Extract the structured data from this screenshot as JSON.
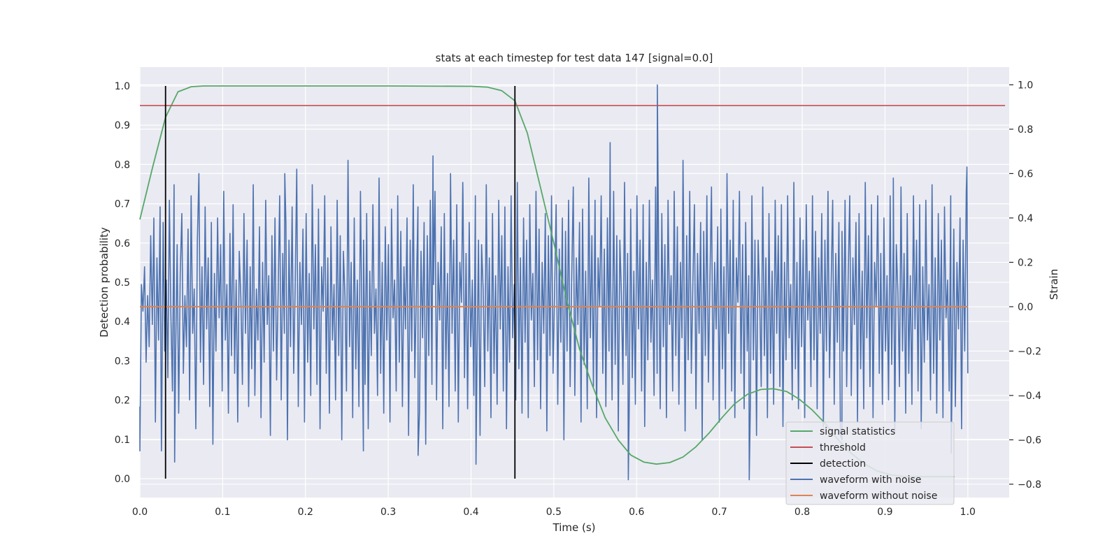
{
  "chart_data": {
    "type": "line",
    "title": "stats at each timestep for test data 147 [signal=0.0]",
    "xlabel": "Time (s)",
    "ylabel": "Detection probability",
    "ylabel_right": "Strain",
    "xlim": [
      0.0,
      1.05
    ],
    "ylim": [
      -0.048,
      1.048
    ],
    "ylim_right": [
      -0.86,
      1.08
    ],
    "xticks": [
      0.0,
      0.1,
      0.2,
      0.3,
      0.4,
      0.5,
      0.6,
      0.7,
      0.8,
      0.9,
      1.0
    ],
    "xtick_labels": [
      "0.0",
      "0.1",
      "0.2",
      "0.3",
      "0.4",
      "0.5",
      "0.6",
      "0.7",
      "0.8",
      "0.9",
      "1.0"
    ],
    "yticks": [
      0.0,
      0.1,
      0.2,
      0.3,
      0.4,
      0.5,
      0.6,
      0.7,
      0.8,
      0.9,
      1.0
    ],
    "ytick_labels": [
      "0.0",
      "0.1",
      "0.2",
      "0.3",
      "0.4",
      "0.5",
      "0.6",
      "0.7",
      "0.8",
      "0.9",
      "1.0"
    ],
    "yticks_right": [
      -0.8,
      -0.6,
      -0.4,
      -0.2,
      0.0,
      0.2,
      0.4,
      0.6,
      0.8,
      1.0
    ],
    "ytick_labels_right": [
      "−0.8",
      "−0.6",
      "−0.4",
      "−0.2",
      "0.0",
      "0.2",
      "0.4",
      "0.6",
      "0.8",
      "1.0"
    ],
    "grid": true,
    "legend_position": "bottom-right",
    "series": [
      {
        "name": "signal statistics",
        "axis": "left",
        "color": "#55a868",
        "x": [
          0.0,
          0.015,
          0.031,
          0.046,
          0.062,
          0.077,
          0.1,
          0.2,
          0.3,
          0.4,
          0.42,
          0.437,
          0.453,
          0.468,
          0.484,
          0.5,
          0.515,
          0.531,
          0.546,
          0.562,
          0.578,
          0.593,
          0.609,
          0.624,
          0.64,
          0.656,
          0.671,
          0.687,
          0.703,
          0.718,
          0.734,
          0.75,
          0.765,
          0.781,
          0.796,
          0.812,
          0.828,
          0.843,
          0.859,
          0.875,
          0.89,
          0.906,
          0.921,
          0.937,
          0.953,
          0.968,
          0.984
        ],
        "y": [
          0.66,
          0.79,
          0.92,
          0.985,
          0.998,
          1.0,
          1.0,
          1.0,
          1.0,
          0.999,
          0.997,
          0.988,
          0.962,
          0.88,
          0.74,
          0.6,
          0.46,
          0.33,
          0.24,
          0.155,
          0.098,
          0.06,
          0.042,
          0.037,
          0.041,
          0.055,
          0.08,
          0.115,
          0.155,
          0.19,
          0.215,
          0.227,
          0.229,
          0.222,
          0.203,
          0.175,
          0.14,
          0.1,
          0.065,
          0.038,
          0.02,
          0.01,
          0.006,
          0.005,
          0.005,
          0.005,
          0.005
        ]
      },
      {
        "name": "threshold",
        "axis": "left",
        "color": "#c44e52",
        "x": [
          0.0,
          1.045
        ],
        "y": [
          0.95,
          0.95
        ]
      },
      {
        "name": "detection",
        "axis": "left",
        "color": "#000000",
        "x": [
          0.031,
          0.453
        ],
        "y_range": [
          0.0,
          1.0
        ]
      },
      {
        "name": "waveform with noise",
        "axis": "right",
        "color": "#4c72b0",
        "x_range": [
          0.0,
          1.0
        ],
        "values": [
          -0.45,
          0.1,
          -0.02,
          0.18,
          -0.25,
          0.05,
          -0.18,
          0.32,
          -0.08,
          0.4,
          -0.52,
          0.22,
          -0.15,
          0.45,
          -0.58,
          0.38,
          -0.2,
          0.12,
          -0.32,
          0.48,
          -0.05,
          -0.38,
          0.55,
          -0.22,
          0.28,
          -0.48,
          0.15,
          0.42,
          -0.3,
          0.05,
          -0.18,
          0.35,
          -0.42,
          0.5,
          -0.12,
          0.08,
          -0.55,
          0.3,
          0.6,
          -0.25,
          0.18,
          -0.35,
          0.45,
          -0.1,
          0.22,
          -0.45,
          0.38,
          -0.62,
          0.15,
          -0.2,
          0.4,
          -0.05,
          0.28,
          -0.38,
          0.52,
          -0.15,
          0.1,
          -0.48,
          0.33,
          -0.22,
          0.46,
          -0.3,
          0.12,
          -0.52,
          0.25,
          0.04,
          -0.35,
          0.42,
          -0.12,
          0.3,
          -0.45,
          0.18,
          -0.28,
          0.55,
          -0.4,
          0.08,
          -0.15,
          0.36,
          -0.5,
          0.2,
          -0.25,
          0.48,
          -0.08,
          0.14,
          -0.58,
          0.32,
          -0.2,
          0.4,
          -0.33,
          0.06,
          0.5,
          -0.42,
          0.24,
          -0.12,
          0.38,
          -0.6,
          0.3,
          -0.18,
          0.45,
          -0.3,
          0.1,
          0.62,
          -0.45,
          0.2,
          -0.08,
          0.35,
          -0.52,
          0.42,
          -0.25,
          0.15,
          -0.4,
          0.55,
          -0.1,
          0.28,
          -0.35,
          0.44,
          -0.55,
          0.18,
          -0.02,
          0.5,
          -0.3,
          0.22,
          -0.48,
          0.36,
          -0.15,
          0.1,
          -0.42,
          0.48,
          -0.22,
          0.32,
          -0.6,
          0.25,
          0.05,
          -0.38,
          0.66,
          -0.18,
          0.2,
          -0.5,
          0.4,
          -0.28,
          0.12,
          -0.45,
          0.52,
          -0.08,
          0.3,
          -0.35,
          0.42,
          -0.55,
          0.16,
          -0.22,
          0.46,
          -0.12,
          0.08,
          -0.4,
          0.58,
          -0.3,
          0.2,
          -0.48,
          0.36,
          -0.15,
          0.28,
          -0.52,
          0.44,
          -0.05,
          0.12,
          -0.38,
          0.5,
          -0.25,
          0.34,
          -0.45,
          0.18,
          -0.1,
          0.4,
          -0.58,
          0.3,
          -0.2,
          0.55,
          -0.32,
          0.06,
          0.45,
          -0.48,
          0.25,
          -0.14,
          0.38,
          -0.62,
          0.32,
          -0.22,
          0.48,
          -0.35,
          0.1,
          0.52,
          -0.42,
          0.2,
          -0.06,
          0.36,
          -0.55,
          0.42,
          -0.28,
          0.15,
          -0.45,
          0.6,
          -0.12,
          0.3,
          -0.38,
          0.46,
          -0.52,
          0.2,
          0.02,
          0.5,
          -0.32,
          0.24,
          -0.46,
          0.38,
          -0.18,
          0.12,
          -0.4,
          0.5,
          -0.25,
          0.3,
          -0.58,
          0.28,
          0.08,
          -0.36,
          0.55,
          -0.2,
          0.22,
          -0.5,
          0.42,
          -0.3,
          0.14,
          -0.44,
          0.48,
          -0.1,
          0.32,
          -0.38,
          0.45,
          -0.55,
          0.18,
          -0.25,
          0.5,
          -0.14,
          0.1,
          -0.42,
          0.56,
          -0.28,
          0.22,
          -0.48,
          0.4,
          -0.16,
          0.3,
          -0.5,
          0.46,
          -0.06,
          0.15,
          -0.36,
          0.52,
          -0.24,
          0.35,
          -0.46,
          0.2,
          -0.12,
          0.42,
          -0.56,
          0.32,
          -0.22,
          0.5,
          -0.3,
          0.08,
          0.46,
          -0.44,
          0.26,
          -0.16,
          0.4,
          -0.6,
          0.34,
          -0.2,
          0.48,
          -0.36,
          0.12,
          0.54,
          -0.4,
          0.22,
          -0.08,
          0.38,
          -0.52,
          0.44,
          -0.26,
          0.16,
          -0.46,
          0.58,
          -0.14,
          0.32,
          -0.36,
          0.48,
          -0.5,
          0.22,
          0.0,
          0.5,
          -0.3,
          0.26,
          -0.45,
          0.4,
          -0.2,
          0.14,
          -0.42,
          0.52,
          -0.26,
          0.32,
          -0.56,
          0.3,
          0.06,
          -0.35,
          0.56,
          -0.22,
          0.24,
          -0.48,
          0.44,
          -0.32,
          0.16,
          -0.44,
          0.5,
          -0.1,
          0.3,
          -0.38,
          0.46,
          -0.54,
          0.2,
          -0.24,
          0.48,
          -0.16,
          0.12,
          -0.4,
          0.54,
          -0.3,
          0.22,
          -0.46,
          0.42,
          -0.18,
          0.28,
          -0.5,
          0.48,
          -0.08,
          0.14,
          -0.38,
          0.52,
          -0.22,
          0.36,
          -0.44,
          0.2,
          -0.14,
          0.4,
          -0.56,
          0.32,
          -0.24,
          0.52,
          -0.3,
          0.1,
          0.46,
          -0.46,
          0.24,
          -0.12,
          0.38,
          -0.6,
          0.34,
          -0.22,
          0.5,
          -0.34,
          0.12,
          0.54,
          -0.42,
          0.2,
          -0.1,
          0.36,
          -0.52,
          0.44,
          -0.28,
          0.18,
          -0.46,
          0.6,
          -0.12,
          0.3,
          -0.38,
          0.48,
          -0.5,
          0.22,
          0.02,
          0.52,
          -0.3,
          0.28,
          -0.46,
          0.38,
          -0.2,
          0.14,
          -0.44,
          0.5,
          -0.24,
          0.3,
          -0.58,
          0.3,
          0.04,
          -0.36,
          0.54,
          -0.22,
          0.22,
          -0.5,
          0.42,
          -0.3,
          0.16,
          -0.44,
          0.48,
          -0.12,
          0.32,
          -0.36,
          0.46,
          -0.54,
          0.2,
          -0.24,
          0.5,
          -0.14,
          0.1,
          -0.42,
          0.56,
          -0.28,
          0.2,
          -0.46,
          0.4,
          -0.18,
          0.3,
          -0.5,
          0.46,
          -0.06,
          0.16,
          -0.36,
          0.5,
          -0.24,
          0.34,
          -0.46,
          0.22,
          -0.12,
          0.42,
          -0.54,
          0.3,
          -0.2,
          0.52,
          -0.32,
          0.1,
          0.48,
          -0.44,
          0.24,
          -0.16,
          0.38,
          -0.58,
          0.34,
          -0.2,
          0.48,
          -0.36,
          0.14,
          0.5,
          -0.4,
          0.22,
          -0.08,
          0.38,
          -0.52,
          0.42,
          -0.28,
          0.16,
          -0.46,
          0.56,
          -0.14,
          0.32,
          -0.36,
          0.46,
          -0.5,
          0.2,
          0.0,
          0.5,
          -0.3,
          0.24,
          -0.44,
          0.4,
          -0.2,
          0.14,
          -0.42,
          0.5,
          -0.26,
          0.3,
          -0.56,
          0.28,
          0.06,
          -0.36,
          0.54,
          -0.2,
          0.24,
          -0.48,
          0.42,
          -0.3,
          0.14,
          -0.44,
          0.5,
          -0.1,
          0.3,
          -0.38,
          0.46,
          -0.55,
          0.18,
          -0.25,
          0.48,
          -0.15,
          0.1,
          -0.42,
          0.55,
          -0.3,
          0.22,
          -0.48,
          0.42,
          -0.15,
          0.3,
          -0.5,
          0.45,
          -0.05,
          0.12,
          -0.38,
          0.5,
          -0.25,
          0.35,
          -0.45,
          0.2,
          -0.1,
          0.4,
          -0.55,
          0.3,
          -0.2,
          0.52,
          -0.3
        ],
        "spikes": [
          {
            "x": 0.0,
            "y": -0.65
          },
          {
            "x": 0.026,
            "y": -0.65
          },
          {
            "x": 0.042,
            "y": -0.7
          },
          {
            "x": 0.175,
            "y": 0.6
          },
          {
            "x": 0.27,
            "y": -0.65
          },
          {
            "x": 0.336,
            "y": -0.67
          },
          {
            "x": 0.354,
            "y": 0.68
          },
          {
            "x": 0.39,
            "y": 0.56
          },
          {
            "x": 0.406,
            "y": -0.71
          },
          {
            "x": 0.568,
            "y": 0.74
          },
          {
            "x": 0.59,
            "y": -0.78
          },
          {
            "x": 0.625,
            "y": 1.0
          },
          {
            "x": 0.656,
            "y": 0.66
          },
          {
            "x": 0.736,
            "y": -0.78
          },
          {
            "x": 0.848,
            "y": -0.6
          },
          {
            "x": 0.91,
            "y": 0.58
          },
          {
            "x": 0.98,
            "y": -0.66
          },
          {
            "x": 0.999,
            "y": 0.63
          }
        ]
      },
      {
        "name": "waveform without noise",
        "axis": "right",
        "color": "#dd8452",
        "x": [
          0.0,
          1.0
        ],
        "y": [
          0.0,
          0.0
        ]
      }
    ]
  }
}
